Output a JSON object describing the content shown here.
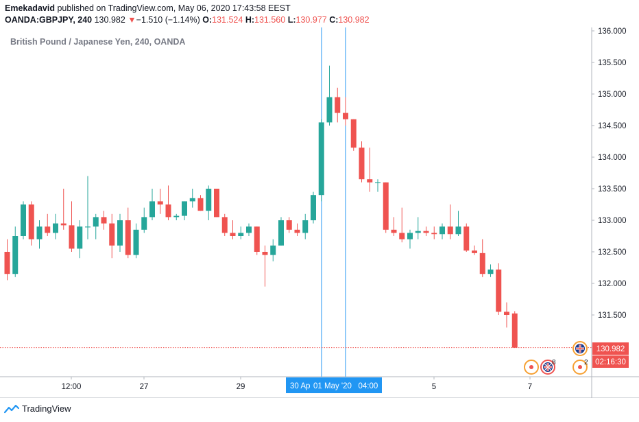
{
  "header": {
    "author": "Emekadavid",
    "published_text": " published on TradingView.com, May 06, 2020 17:43:58 EEST",
    "symbol": "OANDA:GBPJPY, 240",
    "last_price": "130.982",
    "change_arrow": "▼",
    "change_text": "−1.510 (−1.14%)",
    "o_label": "O:",
    "o_value": "131.524",
    "h_label": "H:",
    "h_value": "131.560",
    "l_label": "L:",
    "l_value": "130.977",
    "c_label": "C:",
    "c_value": "130.982"
  },
  "chart_title": "British Pound / Japanese Yen, 240, OANDA",
  "brand": "TradingView",
  "colors": {
    "up": "#26a69a",
    "down": "#ef5350",
    "marker_line": "#2196f3",
    "price_line": "#ef5350",
    "event_orange": "#f6a033"
  },
  "price_badge": "130.982",
  "countdown_badge": "02:16:30",
  "crosshair_label_left": "30 Ap",
  "crosshair_label_right": "01 May '20   04:00",
  "event_icon_names": [
    "red-dot-event-icon",
    "uk-flag-event-icon",
    "red-dot-event-icon",
    "uk-flag-event-icon"
  ],
  "event_counts": [
    "8",
    "2"
  ],
  "chart_data": {
    "type": "candlestick",
    "title": "British Pound / Japanese Yen, 240, OANDA",
    "ylim": [
      130.6,
      136.0
    ],
    "y_ticks": [
      "136.000",
      "135.500",
      "135.000",
      "134.500",
      "134.000",
      "133.500",
      "133.000",
      "132.500",
      "132.000",
      "131.500"
    ],
    "x_tick_labels": [
      "12:00",
      "27",
      "29",
      "5",
      "7"
    ],
    "last_price": 130.982,
    "candles": [
      {
        "o": 132.5,
        "h": 132.7,
        "l": 132.05,
        "c": 132.15
      },
      {
        "o": 132.15,
        "h": 132.9,
        "l": 132.1,
        "c": 132.75
      },
      {
        "o": 132.75,
        "h": 133.3,
        "l": 132.7,
        "c": 133.25
      },
      {
        "o": 133.25,
        "h": 133.3,
        "l": 132.6,
        "c": 132.7
      },
      {
        "o": 132.7,
        "h": 133.0,
        "l": 132.55,
        "c": 132.9
      },
      {
        "o": 132.9,
        "h": 133.1,
        "l": 132.75,
        "c": 132.8
      },
      {
        "o": 132.8,
        "h": 133.1,
        "l": 132.7,
        "c": 132.95
      },
      {
        "o": 132.95,
        "h": 133.5,
        "l": 132.85,
        "c": 132.92
      },
      {
        "o": 132.92,
        "h": 133.3,
        "l": 132.5,
        "c": 132.55
      },
      {
        "o": 132.55,
        "h": 133.0,
        "l": 132.4,
        "c": 132.9
      },
      {
        "o": 132.9,
        "h": 133.7,
        "l": 132.7,
        "c": 132.9
      },
      {
        "o": 132.9,
        "h": 133.1,
        "l": 132.7,
        "c": 133.05
      },
      {
        "o": 133.05,
        "h": 133.15,
        "l": 132.85,
        "c": 132.95
      },
      {
        "o": 132.95,
        "h": 133.1,
        "l": 132.4,
        "c": 132.6
      },
      {
        "o": 132.6,
        "h": 133.1,
        "l": 132.5,
        "c": 133.0
      },
      {
        "o": 133.0,
        "h": 133.2,
        "l": 132.4,
        "c": 132.45
      },
      {
        "o": 132.45,
        "h": 132.95,
        "l": 132.4,
        "c": 132.85
      },
      {
        "o": 132.85,
        "h": 133.2,
        "l": 132.8,
        "c": 133.05
      },
      {
        "o": 133.05,
        "h": 133.5,
        "l": 133.0,
        "c": 133.3
      },
      {
        "o": 133.3,
        "h": 133.5,
        "l": 133.1,
        "c": 133.25
      },
      {
        "o": 133.25,
        "h": 133.55,
        "l": 133.0,
        "c": 133.05
      },
      {
        "o": 133.05,
        "h": 133.1,
        "l": 133.0,
        "c": 133.07
      },
      {
        "o": 133.07,
        "h": 133.3,
        "l": 133.0,
        "c": 133.3
      },
      {
        "o": 133.3,
        "h": 133.5,
        "l": 133.2,
        "c": 133.35
      },
      {
        "o": 133.35,
        "h": 133.4,
        "l": 133.15,
        "c": 133.15
      },
      {
        "o": 133.15,
        "h": 133.55,
        "l": 133.0,
        "c": 133.5
      },
      {
        "o": 133.5,
        "h": 133.5,
        "l": 133.05,
        "c": 133.05
      },
      {
        "o": 133.05,
        "h": 133.1,
        "l": 132.75,
        "c": 132.8
      },
      {
        "o": 132.8,
        "h": 133.0,
        "l": 132.7,
        "c": 132.75
      },
      {
        "o": 132.75,
        "h": 132.9,
        "l": 132.7,
        "c": 132.8
      },
      {
        "o": 132.8,
        "h": 132.95,
        "l": 132.75,
        "c": 132.9
      },
      {
        "o": 132.9,
        "h": 132.9,
        "l": 132.45,
        "c": 132.5
      },
      {
        "o": 132.5,
        "h": 132.6,
        "l": 131.95,
        "c": 132.45
      },
      {
        "o": 132.45,
        "h": 132.7,
        "l": 132.35,
        "c": 132.6
      },
      {
        "o": 132.6,
        "h": 133.05,
        "l": 132.6,
        "c": 133.0
      },
      {
        "o": 133.0,
        "h": 133.05,
        "l": 132.8,
        "c": 132.85
      },
      {
        "o": 132.85,
        "h": 132.95,
        "l": 132.75,
        "c": 132.8
      },
      {
        "o": 132.8,
        "h": 133.1,
        "l": 132.7,
        "c": 133.0
      },
      {
        "o": 133.0,
        "h": 133.45,
        "l": 132.95,
        "c": 133.4
      },
      {
        "o": 133.4,
        "h": 134.6,
        "l": 133.3,
        "c": 134.55
      },
      {
        "o": 134.55,
        "h": 135.45,
        "l": 134.5,
        "c": 134.95
      },
      {
        "o": 134.95,
        "h": 135.1,
        "l": 134.55,
        "c": 134.7
      },
      {
        "o": 134.7,
        "h": 134.95,
        "l": 134.5,
        "c": 134.6
      },
      {
        "o": 134.6,
        "h": 134.6,
        "l": 134.1,
        "c": 134.15
      },
      {
        "o": 134.15,
        "h": 134.25,
        "l": 133.6,
        "c": 133.65
      },
      {
        "o": 133.65,
        "h": 134.15,
        "l": 133.45,
        "c": 133.6
      },
      {
        "o": 133.6,
        "h": 133.65,
        "l": 133.45,
        "c": 133.6
      },
      {
        "o": 133.6,
        "h": 133.6,
        "l": 132.8,
        "c": 132.85
      },
      {
        "o": 132.85,
        "h": 133.05,
        "l": 132.75,
        "c": 132.8
      },
      {
        "o": 132.8,
        "h": 133.2,
        "l": 132.65,
        "c": 132.7
      },
      {
        "o": 132.7,
        "h": 132.85,
        "l": 132.55,
        "c": 132.8
      },
      {
        "o": 132.8,
        "h": 133.05,
        "l": 132.7,
        "c": 132.83
      },
      {
        "o": 132.83,
        "h": 132.9,
        "l": 132.75,
        "c": 132.8
      },
      {
        "o": 132.8,
        "h": 132.9,
        "l": 132.7,
        "c": 132.78
      },
      {
        "o": 132.78,
        "h": 132.95,
        "l": 132.7,
        "c": 132.9
      },
      {
        "o": 132.9,
        "h": 133.25,
        "l": 132.7,
        "c": 132.78
      },
      {
        "o": 132.78,
        "h": 133.15,
        "l": 132.75,
        "c": 132.9
      },
      {
        "o": 132.9,
        "h": 132.95,
        "l": 132.5,
        "c": 132.52
      },
      {
        "o": 132.52,
        "h": 132.6,
        "l": 132.45,
        "c": 132.48
      },
      {
        "o": 132.48,
        "h": 132.7,
        "l": 132.1,
        "c": 132.15
      },
      {
        "o": 132.15,
        "h": 132.3,
        "l": 132.1,
        "c": 132.22
      },
      {
        "o": 132.22,
        "h": 132.32,
        "l": 131.5,
        "c": 131.55
      },
      {
        "o": 131.55,
        "h": 131.7,
        "l": 131.3,
        "c": 131.5
      },
      {
        "o": 131.524,
        "h": 131.56,
        "l": 130.977,
        "c": 130.982
      }
    ]
  }
}
